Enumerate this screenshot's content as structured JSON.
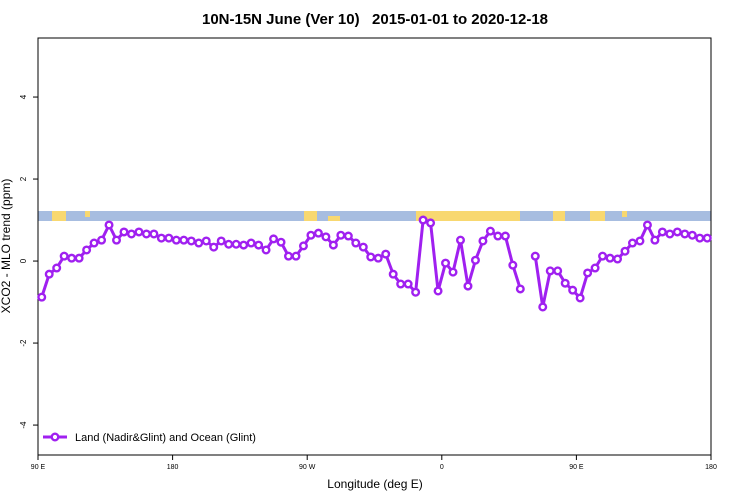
{
  "chart_data": {
    "type": "line",
    "title": "10N-15N June (Ver 10)   2015-01-01 to 2020-12-18",
    "xlabel": "Longitude (deg E)",
    "ylabel": "XCO2 - MLO trend (ppm)",
    "xlim": [
      90,
      540
    ],
    "ylim": [
      -4.73,
      5.44
    ],
    "xticks": [
      {
        "value": 90,
        "label": "90 E"
      },
      180,
      {
        "value": 270,
        "label": "90 W"
      },
      {
        "value": 360,
        "label": "0"
      },
      {
        "value": 450,
        "label": "90 E"
      },
      {
        "value": 540,
        "label": "180"
      }
    ],
    "yticks": [
      -4,
      -2,
      0,
      2,
      4
    ],
    "legend": "bottom-left",
    "x": [
      92.5,
      97.5,
      102.5,
      107.5,
      112.5,
      117.5,
      122.5,
      127.5,
      132.5,
      137.5,
      142.5,
      147.5,
      152.5,
      157.5,
      162.5,
      167.5,
      172.5,
      177.5,
      182.5,
      187.5,
      192.5,
      197.5,
      202.5,
      207.5,
      212.5,
      217.5,
      222.5,
      227.5,
      232.5,
      237.5,
      242.5,
      247.5,
      252.5,
      257.5,
      262.5,
      267.5,
      272.5,
      277.5,
      282.5,
      287.5,
      292.5,
      297.5,
      302.5,
      307.5,
      312.5,
      317.5,
      322.5,
      327.5,
      332.5,
      337.5,
      342.5,
      347.5,
      352.5,
      357.5,
      362.5,
      367.5,
      372.5,
      377.5,
      382.5,
      387.5,
      392.5,
      397.5,
      402.5,
      407.5,
      412.5,
      417.5,
      422.5,
      427.5,
      432.5,
      437.5,
      442.5,
      447.5,
      452.5,
      457.5,
      462.5,
      467.5,
      472.5,
      477.5,
      482.5,
      487.5,
      492.5,
      497.5,
      502.5,
      507.5,
      512.5,
      517.5,
      522.5,
      527.5,
      532.5,
      537.5
    ],
    "series": [
      {
        "name": "Land (Nadir&Glint) and Ocean (Glint)",
        "color": "#a020f0",
        "values": [
          -0.88,
          -0.32,
          -0.17,
          0.12,
          0.07,
          0.07,
          0.27,
          0.44,
          0.51,
          0.88,
          0.51,
          0.71,
          0.66,
          0.71,
          0.66,
          0.66,
          0.56,
          0.56,
          0.51,
          0.51,
          0.49,
          0.44,
          0.49,
          0.34,
          0.49,
          0.41,
          0.41,
          0.39,
          0.44,
          0.39,
          0.27,
          0.54,
          0.46,
          0.12,
          0.12,
          0.37,
          0.63,
          0.68,
          0.59,
          0.39,
          0.63,
          0.61,
          0.44,
          0.34,
          0.1,
          0.07,
          0.17,
          -0.32,
          -0.56,
          -0.56,
          -0.76,
          1.0,
          0.93,
          -0.73,
          -0.05,
          -0.27,
          0.51,
          -0.61,
          0.02,
          0.49,
          0.73,
          0.61,
          0.61,
          -0.1,
          -0.68,
          null,
          0.12,
          -1.12,
          -0.24,
          -0.24,
          -0.54,
          -0.71,
          -0.9,
          -0.29,
          -0.17,
          0.12,
          0.07,
          0.05,
          0.24,
          0.44,
          0.49,
          0.88,
          0.51,
          0.71,
          0.66,
          0.71,
          0.66,
          0.63,
          0.56,
          0.56
        ]
      }
    ]
  }
}
